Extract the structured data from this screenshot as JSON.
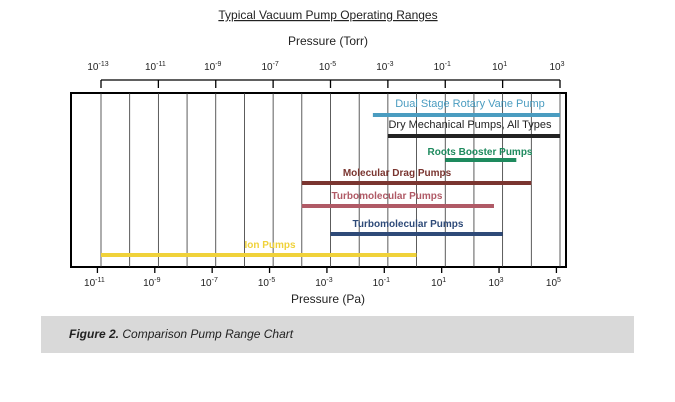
{
  "chart_data": {
    "type": "bar",
    "orientation": "horizontal-range",
    "title": "Typical Vacuum Pump Operating Ranges",
    "top_axis": {
      "label": "Pressure (Torr)",
      "scale": "log",
      "ticks": [
        {
          "base": "10",
          "exp": "-13",
          "value": 1e-13
        },
        {
          "base": "10",
          "exp": "-11",
          "value": 1e-11
        },
        {
          "base": "10",
          "exp": "-9",
          "value": 1e-09
        },
        {
          "base": "10",
          "exp": "-7",
          "value": 1e-07
        },
        {
          "base": "10",
          "exp": "-5",
          "value": 1e-05
        },
        {
          "base": "10",
          "exp": "-3",
          "value": 0.001
        },
        {
          "base": "10",
          "exp": "-1",
          "value": 0.1
        },
        {
          "base": "10",
          "exp": "1",
          "value": 10
        },
        {
          "base": "10",
          "exp": "3",
          "value": 1000
        }
      ]
    },
    "bottom_axis": {
      "label": "Pressure (Pa)",
      "scale": "log",
      "ticks": [
        {
          "base": "10",
          "exp": "-11",
          "value": 1e-11
        },
        {
          "base": "10",
          "exp": "-9",
          "value": 1e-09
        },
        {
          "base": "10",
          "exp": "-7",
          "value": 1e-07
        },
        {
          "base": "10",
          "exp": "-5",
          "value": 1e-05
        },
        {
          "base": "10",
          "exp": "-3",
          "value": 0.001
        },
        {
          "base": "10",
          "exp": "-1",
          "value": 0.1
        },
        {
          "base": "10",
          "exp": "1",
          "value": 10
        },
        {
          "base": "10",
          "exp": "3",
          "value": 1000
        },
        {
          "base": "10",
          "exp": "5",
          "value": 100000
        }
      ]
    },
    "xlim_torr": [
      1e-13,
      1000
    ],
    "grid": true,
    "series": [
      {
        "name": "Dual Stage Rotary Vane Pump",
        "min_torr": 0.0003,
        "max_torr": 1000,
        "color": "#4a9cc0"
      },
      {
        "name": "Dry Mechanical Pumps, All Types",
        "min_torr": 0.001,
        "max_torr": 1000,
        "color": "#222222"
      },
      {
        "name": "Roots Booster Pumps",
        "min_torr": 0.1,
        "max_torr": 30,
        "color": "#1e8a5e"
      },
      {
        "name": "Molecular Drag Pumps",
        "min_torr": 1e-06,
        "max_torr": 100,
        "color": "#7a3530"
      },
      {
        "name": "Turbomolecular Pumps",
        "min_torr": 1e-06,
        "max_torr": 5,
        "color": "#b05a66"
      },
      {
        "name": "Turbomolecular Pumps",
        "min_torr": 1e-05,
        "max_torr": 10,
        "color": "#2e4a78"
      },
      {
        "name": "Ion Pumps",
        "min_torr": 1e-13,
        "max_torr": 0.01,
        "color": "#f0d23a"
      }
    ]
  },
  "figure_caption": {
    "number": "Figure 2.",
    "text": "Comparison Pump Range Chart"
  }
}
